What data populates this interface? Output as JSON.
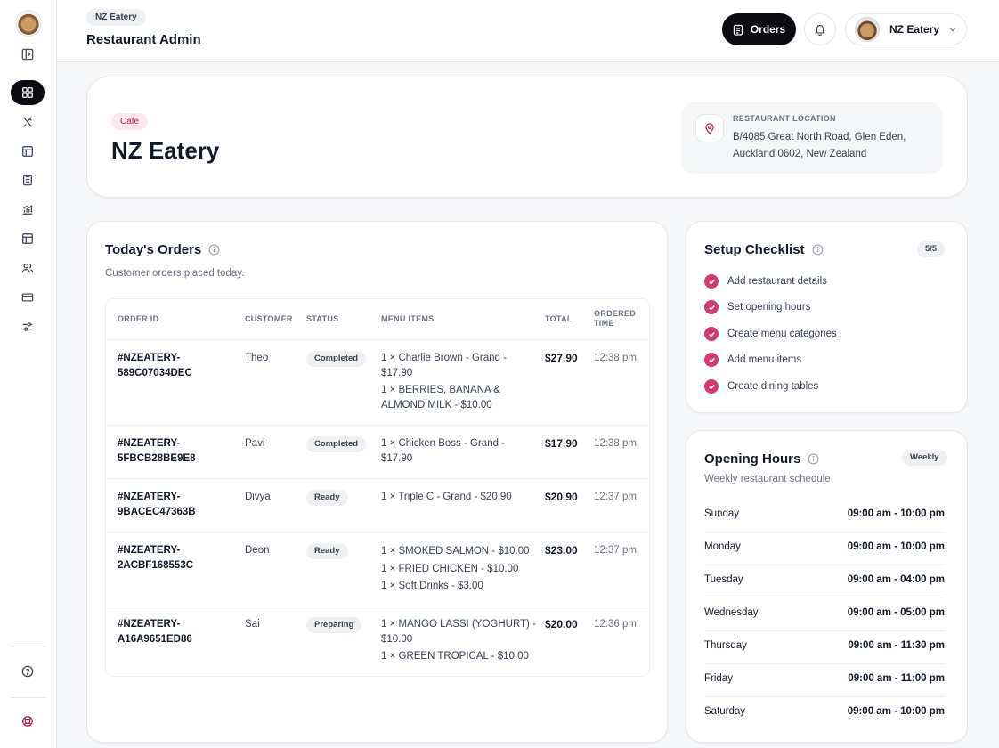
{
  "header": {
    "tag": "NZ Eatery",
    "title": "Restaurant Admin",
    "orders_button": "Orders",
    "account_name": "NZ Eatery"
  },
  "sidebar": {
    "icons": [
      "panel-toggle-icon",
      "dashboard-icon",
      "utensils-icon",
      "layout-icon",
      "clipboard-icon",
      "chart-icon",
      "table-icon",
      "users-icon",
      "card-icon",
      "sliders-icon",
      "help-icon",
      "support-icon"
    ]
  },
  "hero": {
    "tag": "Cafe",
    "name": "NZ Eatery",
    "location_label": "RESTAURANT LOCATION",
    "location_line1": "B/4085 Great North Road, Glen Eden,",
    "location_line2": "Auckland 0602, New Zealand"
  },
  "orders": {
    "title": "Today's Orders",
    "subtitle": "Customer orders placed today.",
    "columns": {
      "order_id": "ORDER ID",
      "customer": "CUSTOMER",
      "status": "STATUS",
      "menu_items": "MENU ITEMS",
      "total": "TOTAL",
      "ordered_time_1": "ORDERED",
      "ordered_time_2": "TIME"
    },
    "rows": [
      {
        "id1": "#NZEATERY-",
        "id2": "589C07034DEC",
        "customer": "Theo",
        "status": "Completed",
        "items": [
          "1 × Charlie Brown - Grand -",
          "$17.90",
          "1 × BERRIES, BANANA &",
          "ALMOND MILK - $10.00"
        ],
        "total": "$27.90",
        "time": "12:38 pm"
      },
      {
        "id1": "#NZEATERY-",
        "id2": "5FBCB28BE9E8",
        "customer": "Pavi",
        "status": "Completed",
        "items": [
          "1 × Chicken Boss - Grand -",
          "$17.90"
        ],
        "total": "$17.90",
        "time": "12:38 pm"
      },
      {
        "id1": "#NZEATERY-",
        "id2": "9BACEC47363B",
        "customer": "Divya",
        "status": "Ready",
        "items": [
          "1 × Triple C - Grand - $20.90"
        ],
        "total": "$20.90",
        "time": "12:37 pm"
      },
      {
        "id1": "#NZEATERY-",
        "id2": "2ACBF168553C",
        "customer": "Deon",
        "status": "Ready",
        "items": [
          "1 × SMOKED SALMON - $10.00",
          "1 × FRIED CHICKEN - $10.00",
          "1 × Soft Drinks - $3.00"
        ],
        "total": "$23.00",
        "time": "12:37 pm"
      },
      {
        "id1": "#NZEATERY-",
        "id2": "A16A9651ED86",
        "customer": "Sai",
        "status": "Preparing",
        "items": [
          "1 × MANGO LASSI (YOGHURT) -",
          "$10.00",
          "1 × GREEN TROPICAL - $10.00"
        ],
        "total": "$20.00",
        "time": "12:36 pm"
      }
    ]
  },
  "checklist": {
    "title": "Setup Checklist",
    "count": "5/5",
    "items": [
      "Add restaurant details",
      "Set opening hours",
      "Create menu categories",
      "Add menu items",
      "Create dining tables"
    ]
  },
  "hours": {
    "title": "Opening Hours",
    "badge": "Weekly",
    "subtitle": "Weekly restaurant schedule",
    "days": [
      {
        "day": "Sunday",
        "hours": "09:00 am - 10:00 pm"
      },
      {
        "day": "Monday",
        "hours": "09:00 am - 10:00 pm"
      },
      {
        "day": "Tuesday",
        "hours": "09:00 am - 04:00 pm"
      },
      {
        "day": "Wednesday",
        "hours": "09:00 am - 05:00 pm"
      },
      {
        "day": "Thursday",
        "hours": "09:00 am - 11:30 pm"
      },
      {
        "day": "Friday",
        "hours": "09:00 am - 11:00 pm"
      },
      {
        "day": "Saturday",
        "hours": "09:00 am - 10:00 pm"
      }
    ]
  },
  "colors": {
    "accent": "#d63a6c",
    "dark": "#0b0b12"
  }
}
